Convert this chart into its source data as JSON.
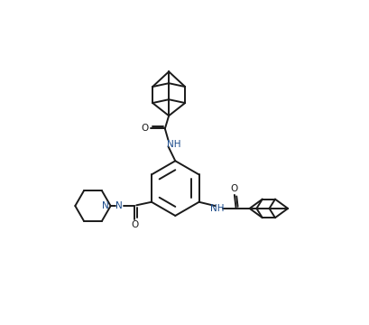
{
  "background_color": "#ffffff",
  "line_color": "#1a1a1a",
  "n_color": "#1a4a8a",
  "o_color": "#1a1a1a",
  "line_width": 1.4,
  "figsize": [
    4.1,
    3.6
  ],
  "dpi": 100,
  "xlim": [
    0,
    10
  ],
  "ylim": [
    0,
    10
  ]
}
